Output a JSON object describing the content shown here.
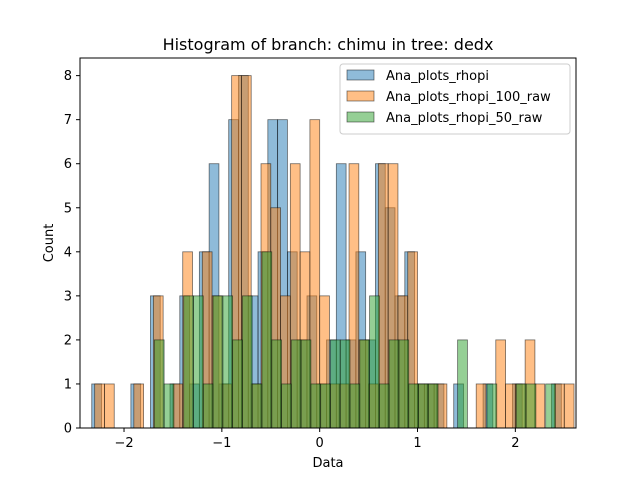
{
  "chart_data": {
    "type": "bar",
    "title": "Histogram of branch: chimu in tree: dedx",
    "xlabel": "Data",
    "ylabel": "Count",
    "xlim": [
      -2.45,
      2.62
    ],
    "ylim": [
      0,
      8.4
    ],
    "xticks": [
      -2,
      -1,
      0,
      1,
      2
    ],
    "yticks": [
      0,
      1,
      2,
      3,
      4,
      5,
      6,
      7,
      8
    ],
    "xtick_labels": [
      "−2",
      "−1",
      "0",
      "1",
      "2"
    ],
    "ytick_labels": [
      "0",
      "1",
      "2",
      "3",
      "4",
      "5",
      "6",
      "7",
      "8"
    ],
    "bin_width": 0.1,
    "legend_position": "top-right",
    "series": [
      {
        "name": "Ana_plots_rhopi",
        "color": "#1f77b4",
        "bins": [
          [
            -2.33,
            1
          ],
          [
            -1.93,
            1
          ],
          [
            -1.73,
            3
          ],
          [
            -1.53,
            1
          ],
          [
            -1.43,
            3
          ],
          [
            -1.33,
            1
          ],
          [
            -1.23,
            4
          ],
          [
            -1.13,
            6
          ],
          [
            -1.03,
            1
          ],
          [
            -0.93,
            7
          ],
          [
            -0.83,
            8
          ],
          [
            -0.73,
            3
          ],
          [
            -0.63,
            4
          ],
          [
            -0.53,
            7
          ],
          [
            -0.43,
            7
          ],
          [
            -0.33,
            4
          ],
          [
            -0.23,
            2
          ],
          [
            -0.13,
            3
          ],
          [
            -0.03,
            1
          ],
          [
            0.07,
            2
          ],
          [
            0.17,
            6
          ],
          [
            0.27,
            2
          ],
          [
            0.37,
            4
          ],
          [
            0.47,
            2
          ],
          [
            0.57,
            6
          ],
          [
            0.67,
            5
          ],
          [
            0.77,
            3
          ],
          [
            0.87,
            4
          ],
          [
            0.97,
            1
          ],
          [
            1.07,
            1
          ],
          [
            1.17,
            1
          ],
          [
            1.37,
            1
          ],
          [
            1.67,
            1
          ],
          [
            1.97,
            1
          ],
          [
            2.37,
            1
          ]
        ]
      },
      {
        "name": "Ana_plots_rhopi_100_raw",
        "color": "#ff7f0e",
        "bins": [
          [
            -2.3,
            1
          ],
          [
            -2.2,
            1
          ],
          [
            -1.9,
            1
          ],
          [
            -1.7,
            3
          ],
          [
            -1.5,
            1
          ],
          [
            -1.4,
            4
          ],
          [
            -1.2,
            4
          ],
          [
            -1.1,
            3
          ],
          [
            -1.0,
            1
          ],
          [
            -0.9,
            8
          ],
          [
            -0.8,
            8
          ],
          [
            -0.7,
            1
          ],
          [
            -0.6,
            6
          ],
          [
            -0.5,
            5
          ],
          [
            -0.4,
            3
          ],
          [
            -0.3,
            6
          ],
          [
            -0.2,
            4
          ],
          [
            -0.1,
            7
          ],
          [
            0.0,
            3
          ],
          [
            0.1,
            1
          ],
          [
            0.2,
            1
          ],
          [
            0.3,
            6
          ],
          [
            0.4,
            2
          ],
          [
            0.5,
            1
          ],
          [
            0.6,
            6
          ],
          [
            0.7,
            6
          ],
          [
            0.8,
            3
          ],
          [
            0.9,
            4
          ],
          [
            1.0,
            1
          ],
          [
            1.1,
            1
          ],
          [
            1.2,
            1
          ],
          [
            1.6,
            1
          ],
          [
            1.8,
            2
          ],
          [
            1.9,
            1
          ],
          [
            2.0,
            1
          ],
          [
            2.1,
            2
          ],
          [
            2.2,
            1
          ],
          [
            2.4,
            1
          ],
          [
            2.5,
            1
          ]
        ]
      },
      {
        "name": "Ana_plots_rhopi_50_raw",
        "color": "#2ca02c",
        "bins": [
          [
            -1.69,
            2
          ],
          [
            -1.59,
            1
          ],
          [
            -1.39,
            3
          ],
          [
            -1.29,
            3
          ],
          [
            -1.19,
            1
          ],
          [
            -1.09,
            3
          ],
          [
            -0.99,
            3
          ],
          [
            -0.89,
            2
          ],
          [
            -0.79,
            3
          ],
          [
            -0.69,
            1
          ],
          [
            -0.59,
            4
          ],
          [
            -0.49,
            2
          ],
          [
            -0.39,
            1
          ],
          [
            -0.29,
            2
          ],
          [
            -0.19,
            2
          ],
          [
            -0.09,
            1
          ],
          [
            0.01,
            1
          ],
          [
            0.11,
            2
          ],
          [
            0.21,
            2
          ],
          [
            0.31,
            1
          ],
          [
            0.41,
            2
          ],
          [
            0.51,
            3
          ],
          [
            0.61,
            1
          ],
          [
            0.71,
            2
          ],
          [
            0.81,
            2
          ],
          [
            0.91,
            1
          ],
          [
            1.01,
            1
          ],
          [
            1.11,
            1
          ],
          [
            1.41,
            2
          ],
          [
            1.71,
            1
          ],
          [
            2.01,
            1
          ],
          [
            2.11,
            1
          ],
          [
            2.31,
            1
          ]
        ]
      }
    ]
  }
}
